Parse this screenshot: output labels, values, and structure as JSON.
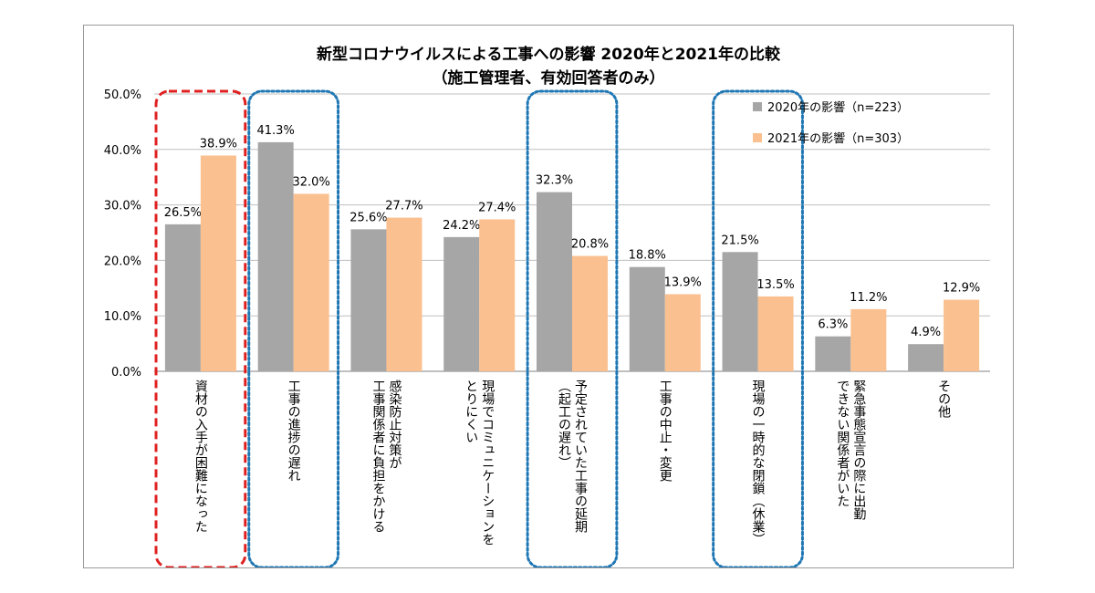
{
  "chart_data": {
    "type": "bar",
    "title": "新型コロナウイルスによる工事への影響 2020年と2021年の比較",
    "subtitle": "（施工管理者、有効回答者のみ）",
    "ylim": [
      0,
      50
    ],
    "yticks": [
      "0.0%",
      "10.0%",
      "20.0%",
      "30.0%",
      "40.0%",
      "50.0%"
    ],
    "grid": true,
    "legend_position": "top-right",
    "categories": [
      [
        "資材の入手が困難になった"
      ],
      [
        "工事の進捗の遅れ"
      ],
      [
        "感染防止対策が",
        "工事関係者に負担をかける"
      ],
      [
        "現場でコミュニケーションを",
        "とりにくい"
      ],
      [
        "予定されていた工事の延期",
        "（起工の遅れ）"
      ],
      [
        "工事の中止・変更"
      ],
      [
        "現場の一時的な閉鎖（休業）"
      ],
      [
        "緊急事態宣言の際に出勤",
        "できない関係者がいた"
      ],
      [
        "その他"
      ]
    ],
    "series": [
      {
        "name": "2020年の影響（n=223）",
        "color": "#a6a6a6",
        "values": [
          26.5,
          41.3,
          25.6,
          24.2,
          32.3,
          18.8,
          21.5,
          6.3,
          4.9
        ],
        "labels": [
          "26.5%",
          "41.3%",
          "25.6%",
          "24.2%",
          "32.3%",
          "18.8%",
          "21.5%",
          "6.3%",
          "4.9%"
        ]
      },
      {
        "name": "2021年の影響（n=303）",
        "color": "#fac090",
        "values": [
          38.9,
          32.0,
          27.7,
          27.4,
          20.8,
          13.9,
          13.5,
          11.2,
          12.9
        ],
        "labels": [
          "38.9%",
          "32.0%",
          "27.7%",
          "27.4%",
          "20.8%",
          "13.9%",
          "13.5%",
          "11.2%",
          "12.9%"
        ]
      }
    ],
    "highlights": [
      {
        "category": 0,
        "style": "red-dashed",
        "color": "#e02020"
      },
      {
        "category": 1,
        "style": "blue-dotted",
        "color": "#1f77b4"
      },
      {
        "category": 4,
        "style": "blue-dotted",
        "color": "#1f77b4"
      },
      {
        "category": 6,
        "style": "blue-dotted",
        "color": "#1f77b4"
      }
    ]
  }
}
